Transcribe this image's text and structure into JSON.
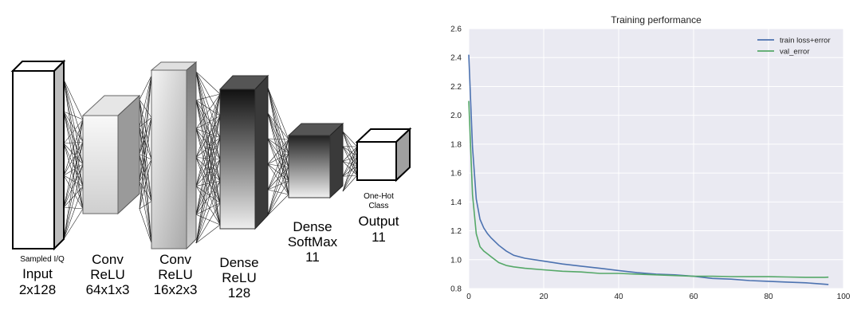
{
  "diagram": {
    "layers": [
      {
        "caption": "Sampled I/Q",
        "lines": [
          "Input",
          "2x128"
        ]
      },
      {
        "caption": "",
        "lines": [
          "Conv",
          "ReLU",
          "64x1x3"
        ]
      },
      {
        "caption": "",
        "lines": [
          "Conv",
          "ReLU",
          "16x2x3"
        ]
      },
      {
        "caption": "",
        "lines": [
          "Dense",
          "ReLU",
          "128"
        ]
      },
      {
        "caption": "",
        "lines": [
          "Dense",
          "SoftMax",
          "11"
        ]
      },
      {
        "caption": "One-Hot Class",
        "lines": [
          "Output",
          "11"
        ]
      }
    ],
    "output_caption_lines": [
      "One-Hot",
      "Class"
    ]
  },
  "chart_data": {
    "type": "line",
    "title": "Training performance",
    "xlabel": "",
    "ylabel": "",
    "xlim": [
      0,
      100
    ],
    "ylim": [
      0.8,
      2.6
    ],
    "xticks": [
      0,
      20,
      40,
      60,
      80,
      100
    ],
    "yticks": [
      0.8,
      1.0,
      1.2,
      1.4,
      1.6,
      1.8,
      2.0,
      2.2,
      2.4,
      2.6
    ],
    "grid": true,
    "legend_position": "top-right",
    "series": [
      {
        "name": "train loss+error",
        "color": "#4c72b0",
        "x": [
          0,
          1,
          2,
          3,
          4,
          5,
          6,
          8,
          10,
          12,
          15,
          20,
          25,
          30,
          35,
          40,
          45,
          50,
          55,
          60,
          65,
          70,
          75,
          80,
          85,
          90,
          95,
          96
        ],
        "y": [
          2.42,
          1.78,
          1.42,
          1.28,
          1.22,
          1.18,
          1.15,
          1.1,
          1.06,
          1.03,
          1.01,
          0.99,
          0.97,
          0.955,
          0.94,
          0.925,
          0.91,
          0.9,
          0.895,
          0.885,
          0.87,
          0.865,
          0.855,
          0.85,
          0.845,
          0.84,
          0.83,
          0.828
        ]
      },
      {
        "name": "val_error",
        "color": "#55a868",
        "x": [
          0,
          1,
          2,
          3,
          4,
          5,
          6,
          8,
          10,
          12,
          15,
          20,
          25,
          30,
          35,
          40,
          45,
          50,
          55,
          60,
          65,
          70,
          75,
          80,
          85,
          90,
          95,
          96
        ],
        "y": [
          2.1,
          1.45,
          1.18,
          1.09,
          1.06,
          1.04,
          1.02,
          0.98,
          0.96,
          0.95,
          0.94,
          0.93,
          0.92,
          0.915,
          0.905,
          0.905,
          0.9,
          0.895,
          0.89,
          0.885,
          0.885,
          0.883,
          0.882,
          0.882,
          0.88,
          0.878,
          0.878,
          0.879
        ]
      }
    ]
  }
}
